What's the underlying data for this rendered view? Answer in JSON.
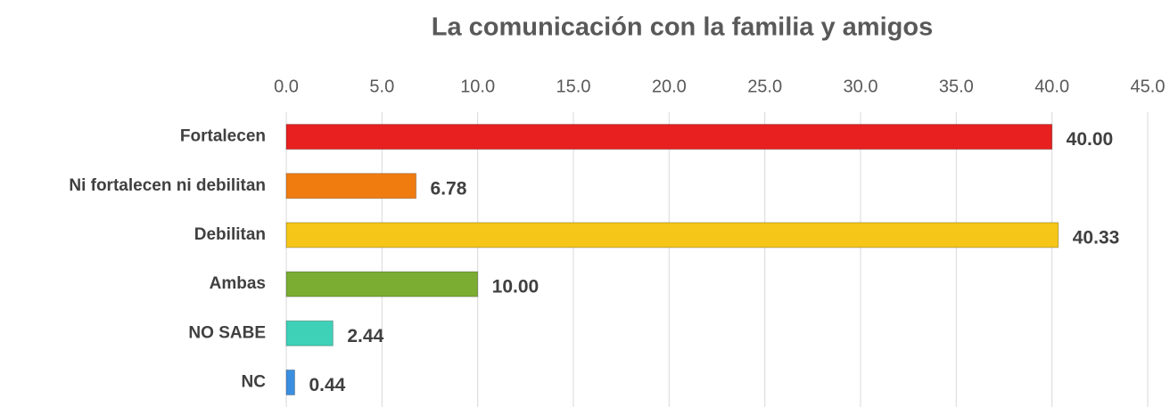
{
  "chart_data": {
    "type": "bar",
    "orientation": "horizontal",
    "title": "La comunicación con la familia y amigos",
    "categories": [
      "Fortalecen",
      "Ni fortalecen ni debilitan",
      "Debilitan",
      "Ambas",
      "NO SABE",
      "NC"
    ],
    "values": [
      40.0,
      6.78,
      40.33,
      10.0,
      2.44,
      0.44
    ],
    "value_labels": [
      "40.00",
      "6.78",
      "40.33",
      "10.00",
      "2.44",
      "0.44"
    ],
    "colors": [
      "#e8201f",
      "#f07c10",
      "#f5c518",
      "#7aad32",
      "#3fd0b8",
      "#3b8fe0"
    ],
    "xlim": [
      0,
      45
    ],
    "xticks": [
      {
        "value": 0,
        "label": "0.0"
      },
      {
        "value": 5,
        "label": "5.0"
      },
      {
        "value": 10,
        "label": "10.0"
      },
      {
        "value": 15,
        "label": "15.0"
      },
      {
        "value": 20,
        "label": "20.0"
      },
      {
        "value": 25,
        "label": "25.0"
      },
      {
        "value": 30,
        "label": "30.0"
      },
      {
        "value": 35,
        "label": "35.0"
      },
      {
        "value": 40,
        "label": "40.0"
      },
      {
        "value": 45,
        "label": "45.0"
      }
    ],
    "grid": true
  }
}
